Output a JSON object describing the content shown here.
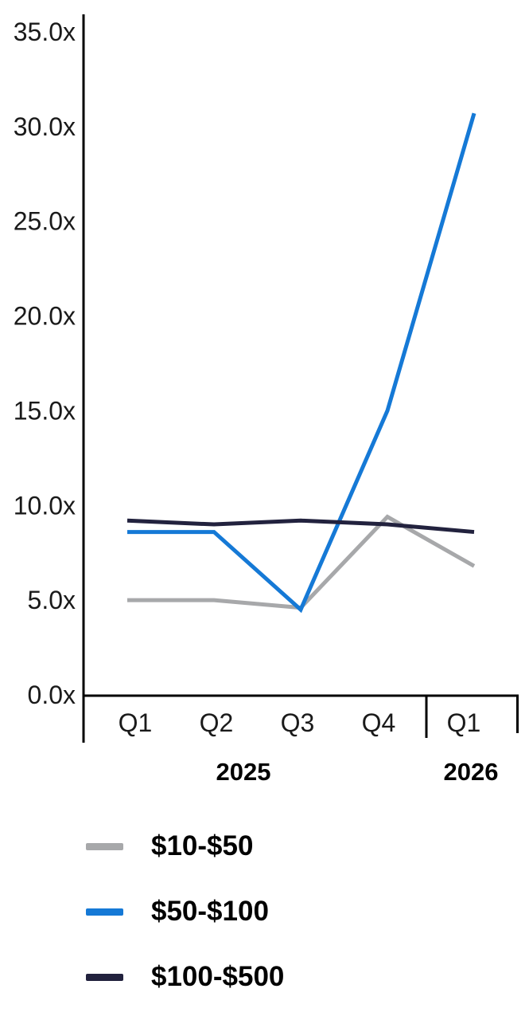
{
  "chart_data": {
    "type": "line",
    "categories": [
      "Q1",
      "Q2",
      "Q3",
      "Q4",
      "Q1"
    ],
    "year_groups": [
      {
        "label": "2025",
        "quarters": 4
      },
      {
        "label": "2026",
        "quarters": 1
      }
    ],
    "y_ticks": [
      {
        "value": 0,
        "label": "0.0x"
      },
      {
        "value": 5,
        "label": "5.0x"
      },
      {
        "value": 10,
        "label": "10.0x"
      },
      {
        "value": 15,
        "label": "15.0x"
      },
      {
        "value": 20,
        "label": "20.0x"
      },
      {
        "value": 25,
        "label": "25.0x"
      },
      {
        "value": 30,
        "label": "30.0x"
      },
      {
        "value": 35,
        "label": "35.0x"
      }
    ],
    "ylim": [
      0,
      35
    ],
    "grid": false,
    "legend_position": "bottom-left",
    "series": [
      {
        "name": "$10-$50",
        "color": "#a7a8aa",
        "values": [
          5.0,
          5.0,
          4.6,
          9.4,
          6.8
        ]
      },
      {
        "name": "$50-$100",
        "color": "#1579d6",
        "values": [
          8.6,
          8.6,
          4.5,
          15.0,
          30.7
        ]
      },
      {
        "name": "$100-$500",
        "color": "#22223e",
        "values": [
          9.2,
          9.0,
          9.2,
          9.0,
          8.6
        ]
      }
    ],
    "colors": {
      "axis": "#000000",
      "tick_text": "#1a1a1a",
      "year_text": "#000000",
      "legend_text": "#000000"
    }
  }
}
